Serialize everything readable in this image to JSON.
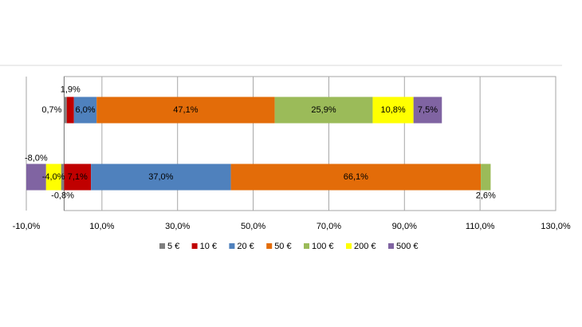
{
  "chart_data": {
    "type": "stacked-barh",
    "categories": [
      null,
      null
    ],
    "series": [
      {
        "name": "5 €",
        "color": "#7f7f7f",
        "values": [
          0.7,
          -0.8
        ],
        "value_labels": [
          "0,7%",
          "-0,8%"
        ]
      },
      {
        "name": "10 €",
        "color": "#c00000",
        "values": [
          1.9,
          7.1
        ],
        "value_labels": [
          "1,9%",
          "7,1%"
        ]
      },
      {
        "name": "20 €",
        "color": "#4f81bd",
        "values": [
          6.0,
          37.0
        ],
        "value_labels": [
          "6,0%",
          "37,0%"
        ]
      },
      {
        "name": "50 €",
        "color": "#e36c09",
        "values": [
          47.1,
          66.1
        ],
        "value_labels": [
          "47,1%",
          "66,1%"
        ]
      },
      {
        "name": "100 €",
        "color": "#9bbb59",
        "values": [
          25.9,
          2.6
        ],
        "value_labels": [
          "25,9%",
          "2,6%"
        ]
      },
      {
        "name": "200 €",
        "color": "#ffff00",
        "values": [
          10.8,
          -4.0
        ],
        "value_labels": [
          "10,8%",
          "-4,0%"
        ]
      },
      {
        "name": "500 €",
        "color": "#8064a2",
        "values": [
          7.5,
          -8.0
        ],
        "value_labels": [
          "7,5%",
          "-8,0%"
        ]
      }
    ],
    "xlim": [
      -10,
      130
    ],
    "xticks": [
      {
        "value": -10,
        "label": "-10,0%"
      },
      {
        "value": 10,
        "label": "10,0%"
      },
      {
        "value": 30,
        "label": "30,0%"
      },
      {
        "value": 50,
        "label": "50,0%"
      },
      {
        "value": 70,
        "label": "70,0%"
      },
      {
        "value": 90,
        "label": "90,0%"
      },
      {
        "value": 110,
        "label": "110,0%"
      },
      {
        "value": 130,
        "label": "130,0%"
      }
    ],
    "grid": true,
    "legend": "bottom"
  }
}
